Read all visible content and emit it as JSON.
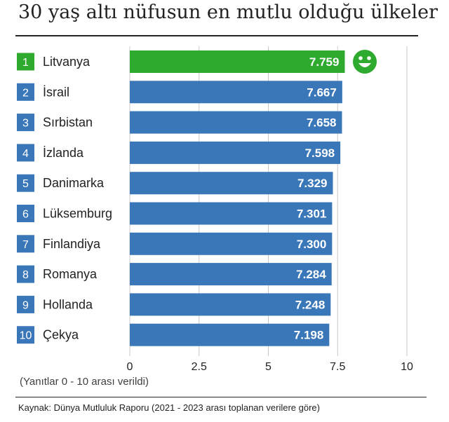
{
  "title": "30 yaş altı nüfusun en mutlu olduğu ülkeler",
  "note": "(Yanıtlar 0 - 10 arası verildi)",
  "source": "Kaynak: Dünya Mutluluk Raporu (2021 - 2023 arası toplanan verilere göre)",
  "colors": {
    "highlight": "#2eaa2e",
    "bar": "#3a77b9",
    "grid": "#c8c8c8",
    "text": "#222222"
  },
  "highlight_icon": "smiley-face-icon",
  "chart_data": {
    "type": "bar",
    "orientation": "horizontal",
    "ranks": [
      "1",
      "2",
      "3",
      "4",
      "5",
      "6",
      "7",
      "8",
      "9",
      "10"
    ],
    "categories": [
      "Litvanya",
      "İsrail",
      "Sırbistan",
      "İzlanda",
      "Danimarka",
      "Lüksemburg",
      "Finlandiya",
      "Romanya",
      "Hollanda",
      "Çekya"
    ],
    "values": [
      7.759,
      7.667,
      7.658,
      7.598,
      7.329,
      7.301,
      7.3,
      7.284,
      7.248,
      7.198
    ],
    "value_labels": [
      "7.759",
      "7.667",
      "7.658",
      "7.598",
      "7.329",
      "7.301",
      "7.300",
      "7.284",
      "7.248",
      "7.198"
    ],
    "highlight_index": 0,
    "xlim": [
      0,
      10
    ],
    "xticks": [
      0,
      2.5,
      5,
      7.5,
      10
    ],
    "xtick_labels": [
      "0",
      "2.5",
      "5",
      "7.5",
      "10"
    ],
    "grid": true
  }
}
